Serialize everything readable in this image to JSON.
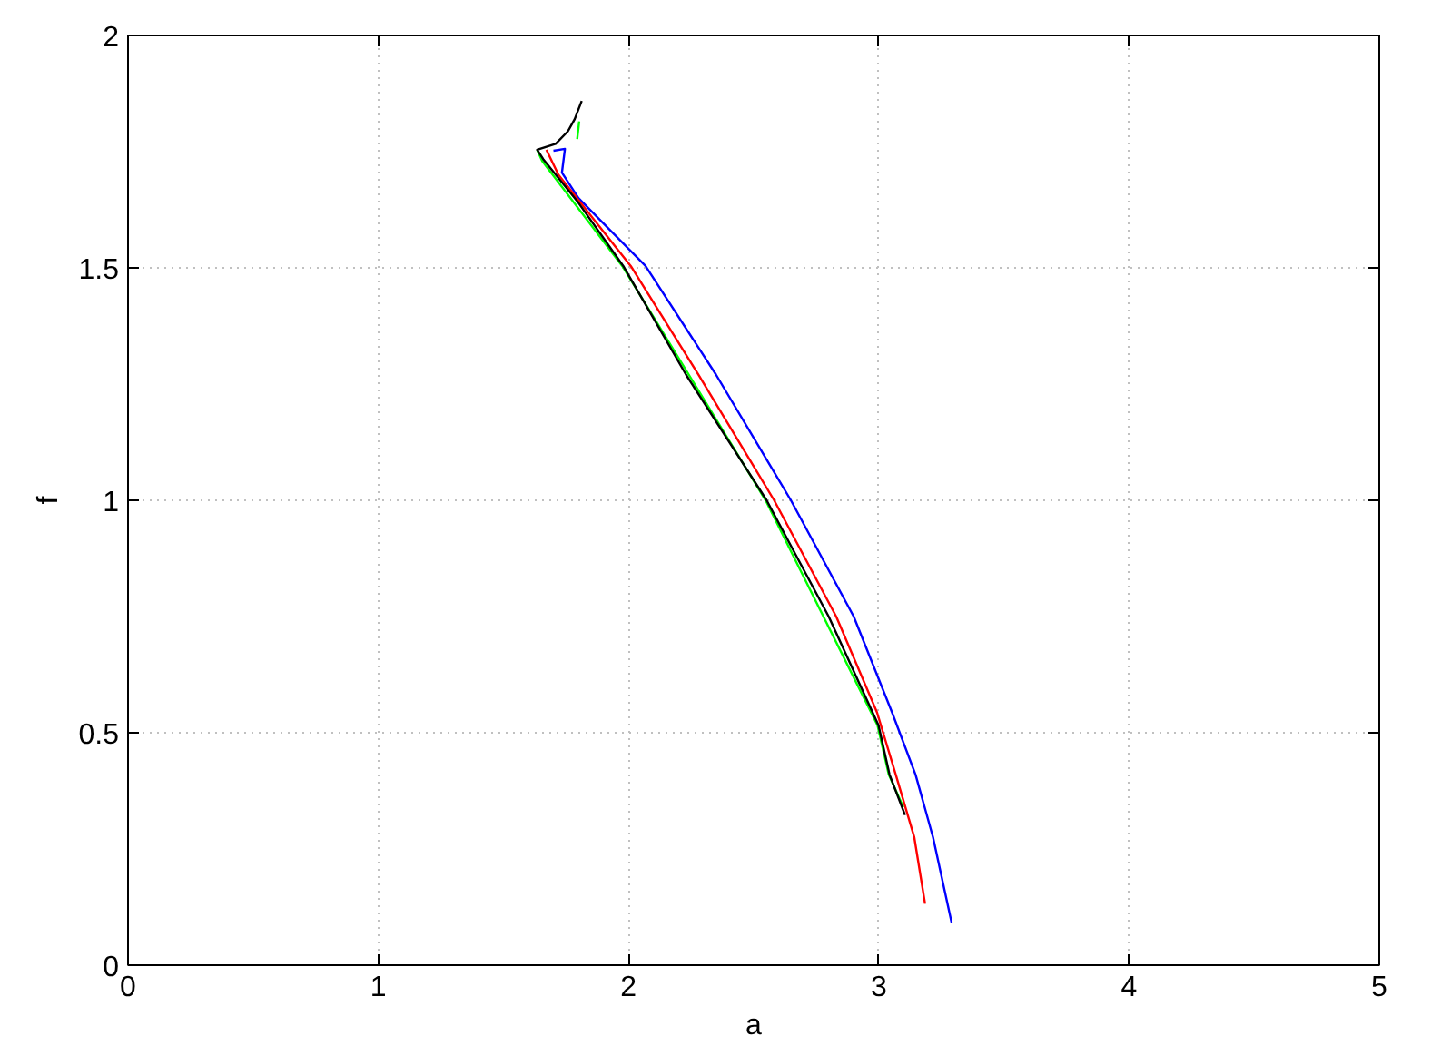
{
  "chart_data": {
    "type": "line",
    "xlabel": "a",
    "ylabel": "f",
    "xlim": [
      0,
      5
    ],
    "ylim": [
      0,
      2
    ],
    "xticks": [
      0,
      1,
      2,
      3,
      4,
      5
    ],
    "yticks": [
      0,
      0.5,
      1,
      1.5,
      2
    ],
    "grid": true,
    "marker": "none",
    "line_style": "solid",
    "series": [
      {
        "color": "#0000ff",
        "x": [
          1.7,
          1.746,
          1.734,
          1.8,
          2.068,
          2.35,
          2.649,
          2.9,
          3.053,
          3.147,
          3.217,
          3.291
        ],
        "values": [
          1.752,
          1.756,
          1.705,
          1.65,
          1.504,
          1.27,
          1.0,
          0.75,
          0.544,
          0.41,
          0.275,
          0.092
        ]
      },
      {
        "color": "#ff0000",
        "x": [
          1.672,
          1.72,
          2.009,
          2.28,
          2.582,
          2.83,
          2.993,
          3.068,
          3.142,
          3.185
        ],
        "values": [
          1.754,
          1.7,
          1.504,
          1.27,
          1.0,
          0.75,
          0.544,
          0.41,
          0.275,
          0.132
        ]
      },
      {
        "color": "#00ff00",
        "x": [
          1.803,
          1.795,
          null,
          1.635,
          1.655,
          1.975,
          2.548,
          2.995,
          3.04,
          3.098
        ],
        "values": [
          1.815,
          1.777,
          null,
          1.754,
          1.73,
          1.504,
          1.0,
          0.516,
          0.41,
          0.34
        ]
      },
      {
        "color": "#000000",
        "x": [
          1.813,
          1.785,
          1.758,
          1.709,
          1.635,
          1.659,
          1.8,
          1.979,
          2.23,
          2.552,
          2.8,
          2.999,
          3.043,
          3.105
        ],
        "values": [
          1.859,
          1.82,
          1.794,
          1.767,
          1.754,
          1.734,
          1.64,
          1.504,
          1.27,
          1.0,
          0.75,
          0.516,
          0.41,
          0.323
        ]
      }
    ]
  }
}
